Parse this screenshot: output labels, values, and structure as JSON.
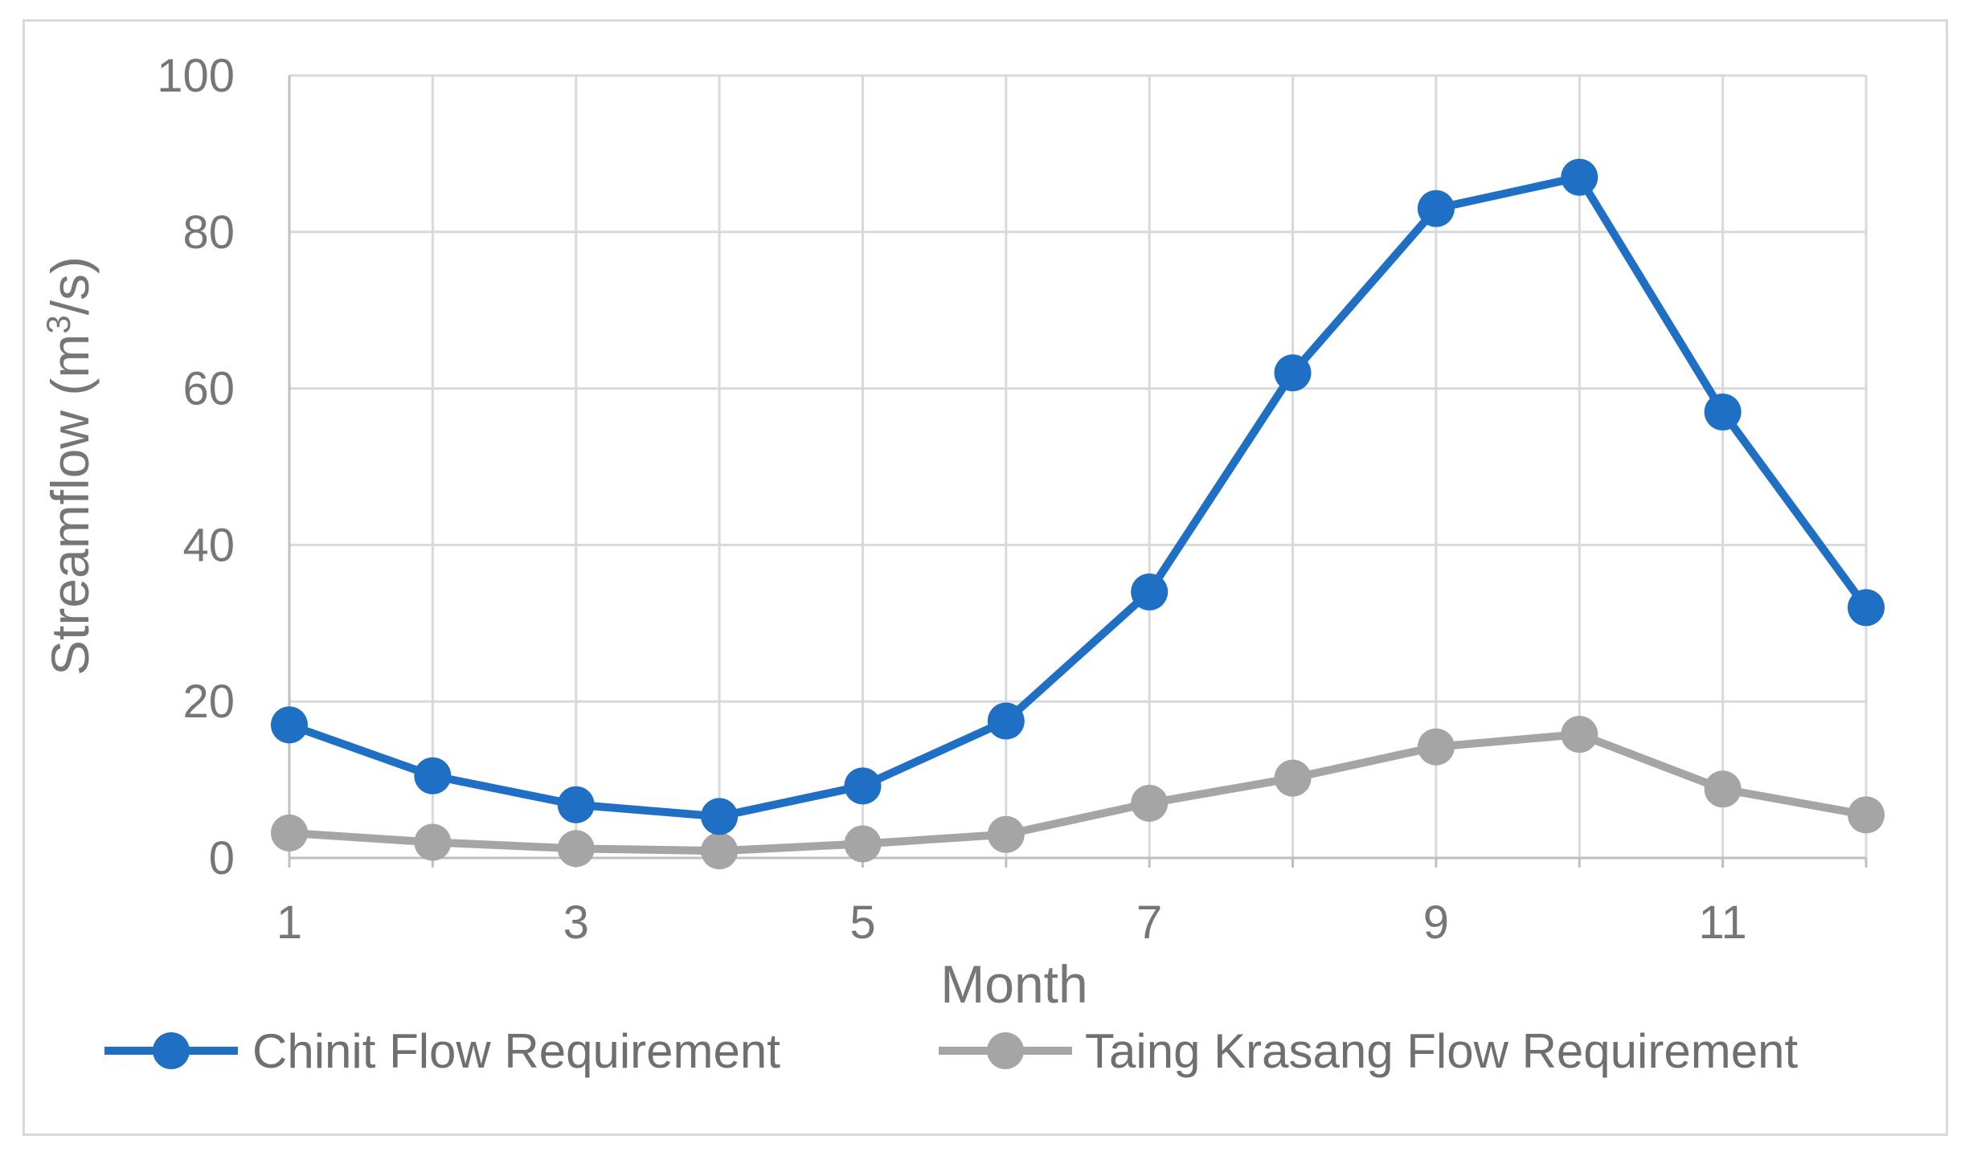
{
  "chart_data": {
    "type": "line",
    "title": "",
    "xlabel": "Month",
    "ylabel": "Streamflow (m³/s)",
    "ylabel_parts": {
      "prefix": "Streamflow (m",
      "superscript": "3",
      "suffix": "/s)"
    },
    "x": [
      1,
      2,
      3,
      4,
      5,
      6,
      7,
      8,
      9,
      10,
      11,
      12
    ],
    "xticks": [
      "1",
      "3",
      "5",
      "7",
      "9",
      "11"
    ],
    "xtick_values": [
      1,
      3,
      5,
      7,
      9,
      11
    ],
    "xlim": [
      1,
      12
    ],
    "ylim": [
      0,
      100
    ],
    "yticks": [
      "0",
      "20",
      "40",
      "60",
      "80",
      "100"
    ],
    "ytick_values": [
      0,
      20,
      40,
      60,
      80,
      100
    ],
    "grid": true,
    "legend_position": "bottom",
    "series": [
      {
        "name": "Chinit Flow Requirement",
        "color": "#1f6fc5",
        "values": [
          17,
          10.5,
          6.8,
          5.3,
          9.2,
          17.5,
          34,
          62,
          83,
          87,
          57,
          32
        ]
      },
      {
        "name": "Taing Krasang Flow Requirement",
        "color": "#a5a5a5",
        "values": [
          3.2,
          2,
          1.2,
          0.9,
          1.8,
          3,
          7,
          10.2,
          14.2,
          15.8,
          8.8,
          5.5
        ]
      }
    ]
  }
}
